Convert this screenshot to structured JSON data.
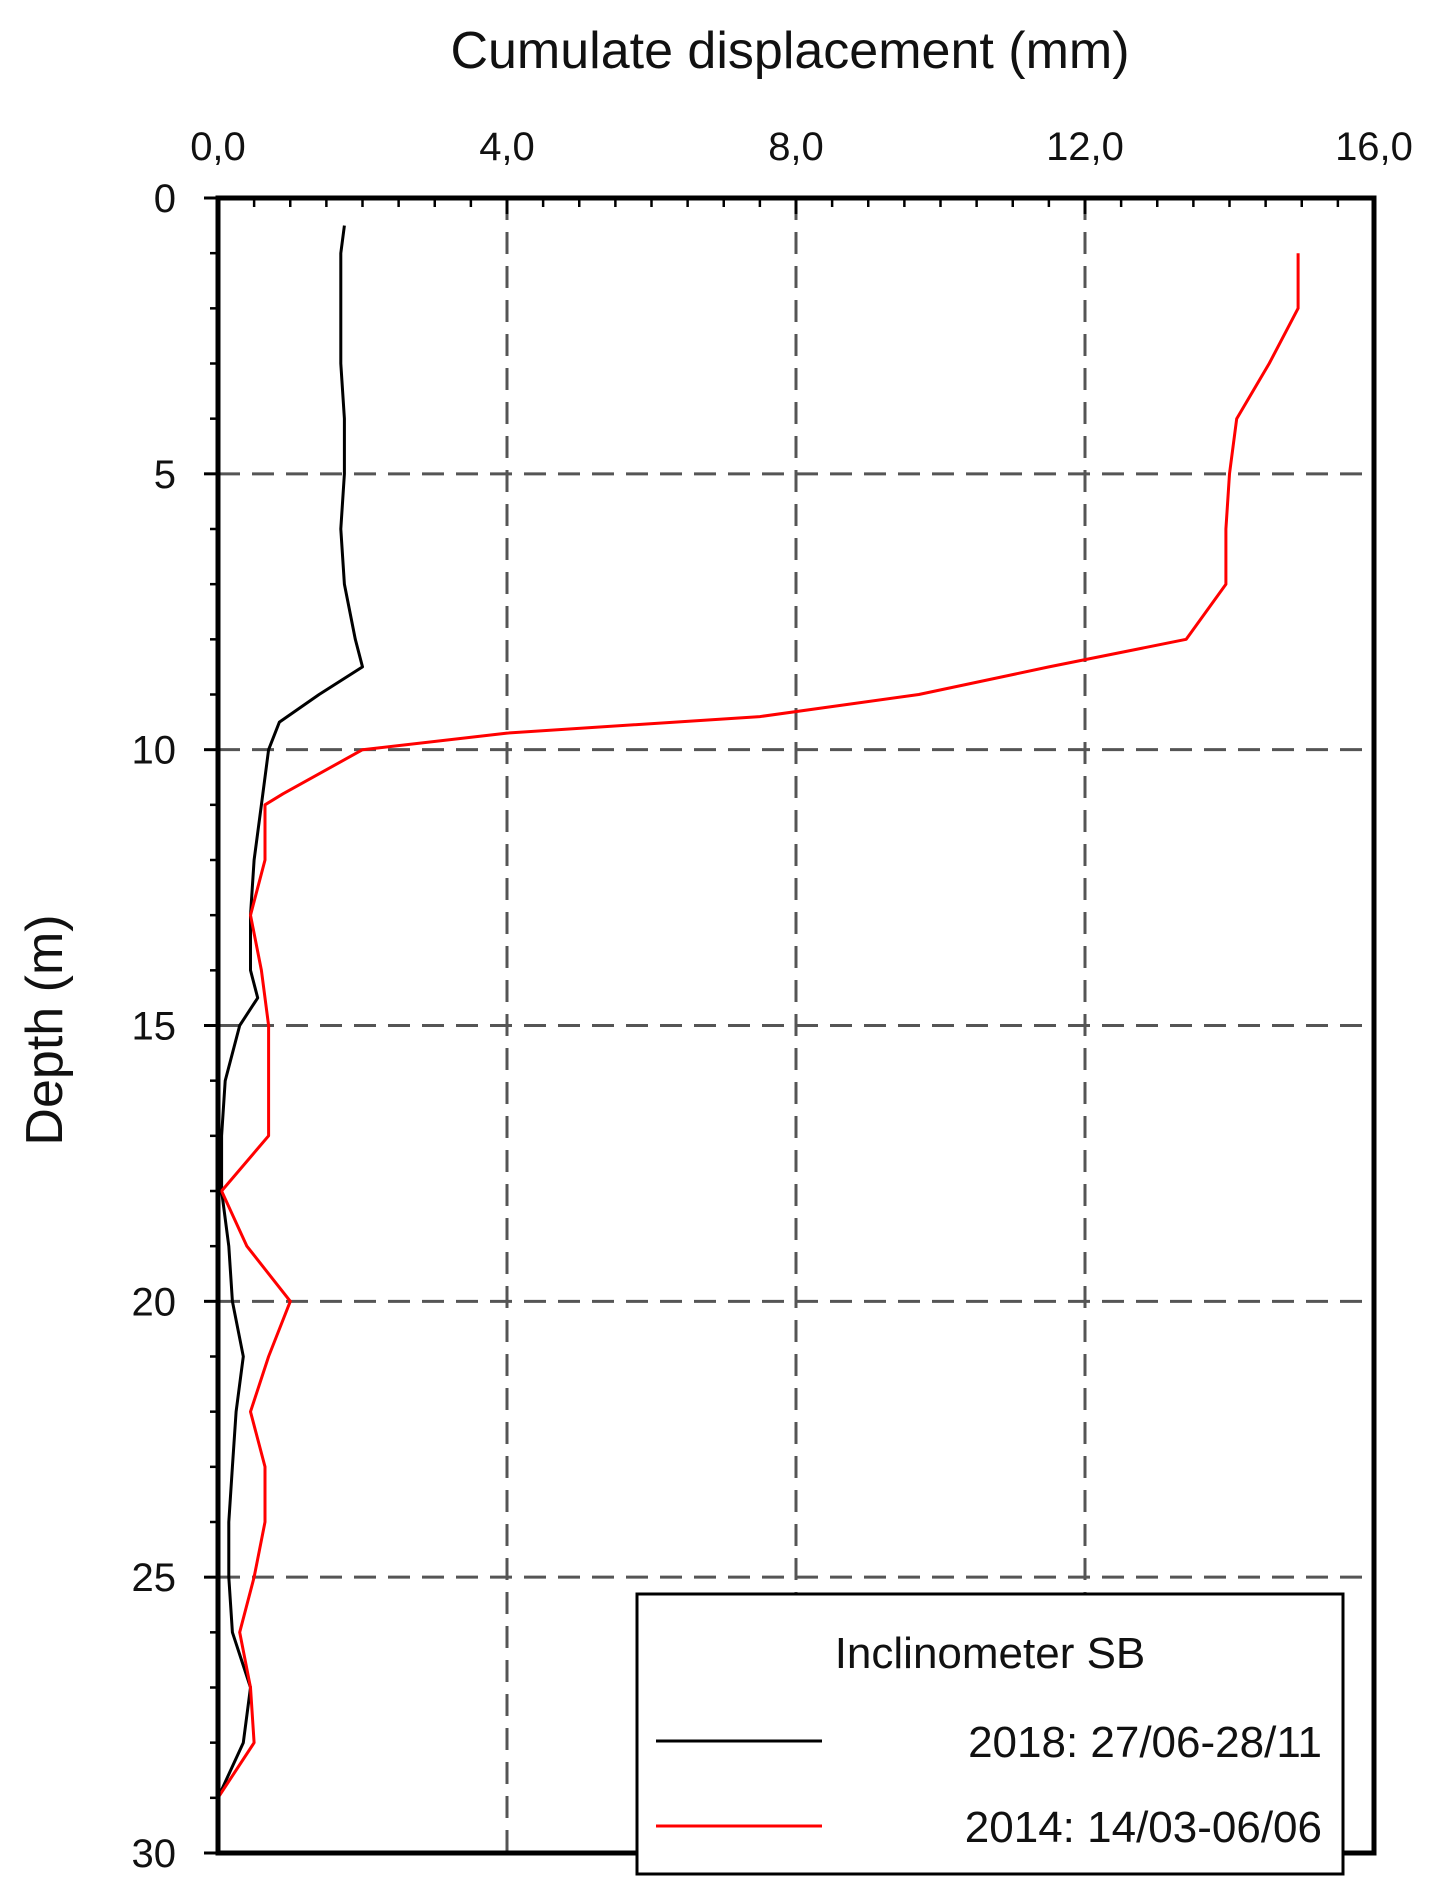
{
  "chart_data": {
    "type": "line",
    "xlabel": "Cumulate displacement (mm)",
    "ylabel": "Depth (m)",
    "xlim": [
      0,
      16
    ],
    "ylim": [
      30,
      0
    ],
    "x_axis_position": "top",
    "x_ticks": [
      0,
      4,
      8,
      12,
      16
    ],
    "x_tick_labels": [
      "0,0",
      "4,0",
      "8,0",
      "12,0",
      "16,0"
    ],
    "y_ticks": [
      0,
      5,
      10,
      15,
      20,
      25,
      30
    ],
    "y_tick_labels": [
      "0",
      "5",
      "10",
      "15",
      "20",
      "25",
      "30"
    ],
    "grid": true,
    "legend": {
      "title": "Inclinometer SB",
      "position": "bottom-right"
    },
    "series": [
      {
        "name": "2018: 27/06-28/11",
        "color": "#000000",
        "points": [
          [
            1.75,
            0.5
          ],
          [
            1.7,
            1.0
          ],
          [
            1.7,
            2.0
          ],
          [
            1.7,
            3.0
          ],
          [
            1.75,
            4.0
          ],
          [
            1.75,
            5.0
          ],
          [
            1.7,
            6.0
          ],
          [
            1.75,
            7.0
          ],
          [
            1.9,
            8.0
          ],
          [
            2.0,
            8.5
          ],
          [
            1.4,
            9.0
          ],
          [
            0.85,
            9.5
          ],
          [
            0.7,
            10.0
          ],
          [
            0.6,
            11.0
          ],
          [
            0.5,
            12.0
          ],
          [
            0.45,
            13.0
          ],
          [
            0.45,
            14.0
          ],
          [
            0.55,
            14.5
          ],
          [
            0.3,
            15.0
          ],
          [
            0.1,
            16.0
          ],
          [
            0.05,
            17.0
          ],
          [
            0.05,
            18.0
          ],
          [
            0.15,
            19.0
          ],
          [
            0.2,
            20.0
          ],
          [
            0.35,
            21.0
          ],
          [
            0.25,
            22.0
          ],
          [
            0.2,
            23.0
          ],
          [
            0.15,
            24.0
          ],
          [
            0.15,
            25.0
          ],
          [
            0.2,
            26.0
          ],
          [
            0.45,
            27.0
          ],
          [
            0.35,
            28.0
          ],
          [
            0.0,
            29.0
          ]
        ]
      },
      {
        "name": "2014: 14/03-06/06",
        "color": "#ff0000",
        "points": [
          [
            14.95,
            1.0
          ],
          [
            14.95,
            2.0
          ],
          [
            14.55,
            3.0
          ],
          [
            14.1,
            4.0
          ],
          [
            14.0,
            5.0
          ],
          [
            13.95,
            6.0
          ],
          [
            13.95,
            7.0
          ],
          [
            13.4,
            8.0
          ],
          [
            11.5,
            8.5
          ],
          [
            9.7,
            9.0
          ],
          [
            7.5,
            9.4
          ],
          [
            4.0,
            9.7
          ],
          [
            2.0,
            10.0
          ],
          [
            0.9,
            10.8
          ],
          [
            0.65,
            11.0
          ],
          [
            0.65,
            12.0
          ],
          [
            0.45,
            13.0
          ],
          [
            0.6,
            14.0
          ],
          [
            0.7,
            15.0
          ],
          [
            0.7,
            16.0
          ],
          [
            0.7,
            17.0
          ],
          [
            0.05,
            18.0
          ],
          [
            0.4,
            19.0
          ],
          [
            1.0,
            20.0
          ],
          [
            0.7,
            21.0
          ],
          [
            0.45,
            22.0
          ],
          [
            0.65,
            23.0
          ],
          [
            0.65,
            24.0
          ],
          [
            0.5,
            25.0
          ],
          [
            0.3,
            26.0
          ],
          [
            0.45,
            27.0
          ],
          [
            0.5,
            28.0
          ],
          [
            0.0,
            29.0
          ]
        ]
      }
    ]
  }
}
